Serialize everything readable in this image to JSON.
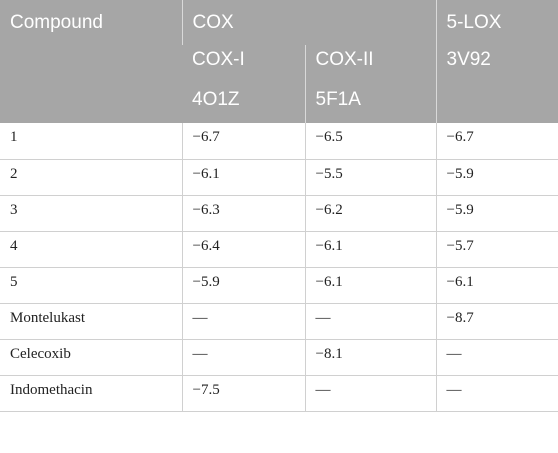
{
  "header": {
    "compound": "Compound",
    "cox": "COX",
    "lox": "5-LOX",
    "cox1": "COX-I",
    "cox2": "COX-II",
    "lox_pdb": "3V92",
    "cox1_pdb": "4O1Z",
    "cox2_pdb": "5F1A"
  },
  "rows": [
    {
      "compound": "1",
      "cox1": "−6.7",
      "cox2": "−6.5",
      "lox": "−6.7"
    },
    {
      "compound": "2",
      "cox1": "−6.1",
      "cox2": "−5.5",
      "lox": "−5.9"
    },
    {
      "compound": "3",
      "cox1": "−6.3",
      "cox2": "−6.2",
      "lox": "−5.9"
    },
    {
      "compound": "4",
      "cox1": "−6.4",
      "cox2": "−6.1",
      "lox": "−5.7"
    },
    {
      "compound": "5",
      "cox1": "−5.9",
      "cox2": "−6.1",
      "lox": "−6.1"
    },
    {
      "compound": "Montelukast",
      "cox1": "—",
      "cox2": "—",
      "lox": "−8.7"
    },
    {
      "compound": "Celecoxib",
      "cox1": "—",
      "cox2": "−8.1",
      "lox": "—"
    },
    {
      "compound": "Indomethacin",
      "cox1": "−7.5",
      "cox2": "—",
      "lox": "—"
    }
  ]
}
